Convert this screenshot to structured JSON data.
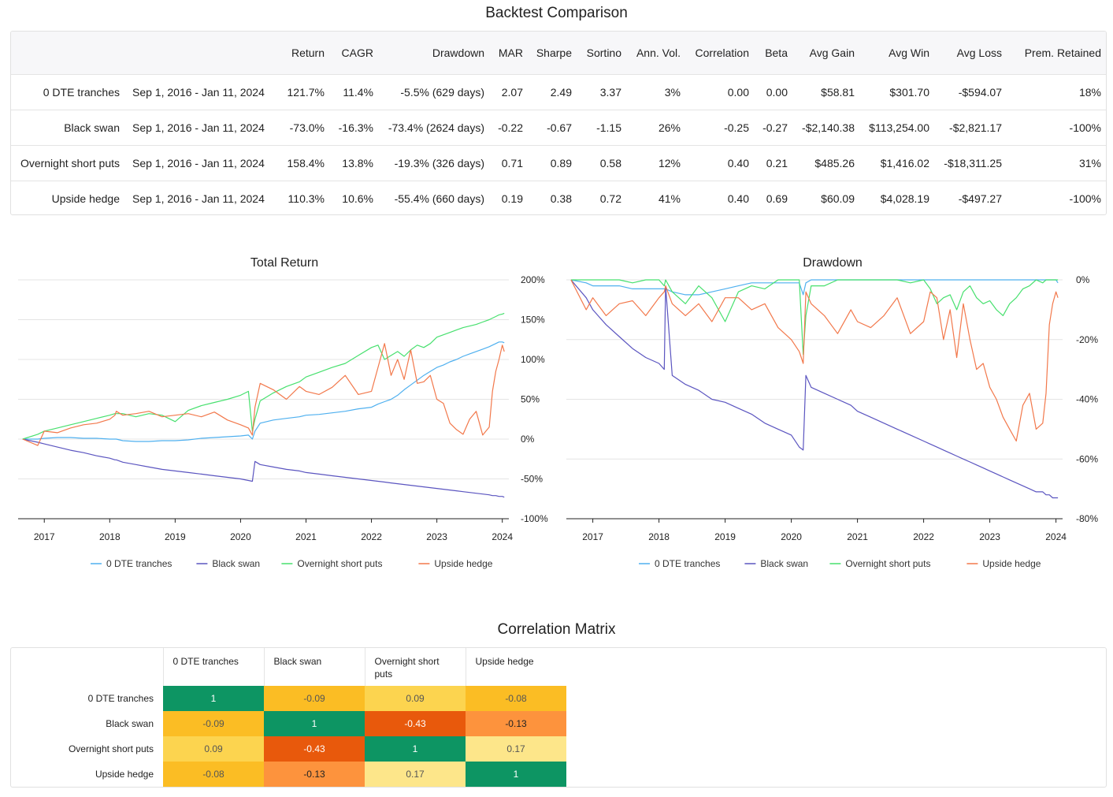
{
  "backtest": {
    "title": "Backtest Comparison",
    "columns": [
      "",
      "",
      "Return",
      "CAGR",
      "Drawdown",
      "MAR",
      "Sharpe",
      "Sortino",
      "Ann. Vol.",
      "Correlation",
      "Beta",
      "Avg Gain",
      "Avg Win",
      "Avg Loss",
      "Prem. Retained"
    ],
    "rows": [
      [
        "0 DTE tranches",
        "Sep 1, 2016 - Jan 11, 2024",
        "121.7%",
        "11.4%",
        "-5.5% (629 days)",
        "2.07",
        "2.49",
        "3.37",
        "3%",
        "0.00",
        "0.00",
        "$58.81",
        "$301.70",
        "-$594.07",
        "18%"
      ],
      [
        "Black swan",
        "Sep 1, 2016 - Jan 11, 2024",
        "-73.0%",
        "-16.3%",
        "-73.4% (2624 days)",
        "-0.22",
        "-0.67",
        "-1.15",
        "26%",
        "-0.25",
        "-0.27",
        "-$2,140.38",
        "$113,254.00",
        "-$2,821.17",
        "-100%"
      ],
      [
        "Overnight short puts",
        "Sep 1, 2016 - Jan 11, 2024",
        "158.4%",
        "13.8%",
        "-19.3% (326 days)",
        "0.71",
        "0.89",
        "0.58",
        "12%",
        "0.40",
        "0.21",
        "$485.26",
        "$1,416.02",
        "-$18,311.25",
        "31%"
      ],
      [
        "Upside hedge",
        "Sep 1, 2016 - Jan 11, 2024",
        "110.3%",
        "10.6%",
        "-55.4% (660 days)",
        "0.19",
        "0.38",
        "0.72",
        "41%",
        "0.40",
        "0.69",
        "$60.09",
        "$4,028.19",
        "-$497.27",
        "-100%"
      ]
    ]
  },
  "colors": {
    "0 DTE tranches": "#4fb0ef",
    "Black swan": "#5b55c0",
    "Overnight short puts": "#47e06e",
    "Upside hedge": "#f2784b"
  },
  "chart_data": [
    {
      "type": "line",
      "title": "Total Return",
      "y_unit": "%",
      "ylim": [
        -100,
        200
      ],
      "yticks": [
        "200%",
        "150%",
        "100%",
        "50%",
        "0%",
        "-50%",
        "-100%"
      ],
      "xlim": [
        2016.6,
        2024.1
      ],
      "xticks": [
        "2017",
        "2018",
        "2019",
        "2020",
        "2021",
        "2022",
        "2023",
        "2024"
      ],
      "x": [
        2016.67,
        2016.9,
        2017.0,
        2017.2,
        2017.4,
        2017.6,
        2017.8,
        2018.0,
        2018.08,
        2018.1,
        2018.2,
        2018.4,
        2018.6,
        2018.8,
        2019.0,
        2019.2,
        2019.4,
        2019.6,
        2019.8,
        2020.0,
        2020.12,
        2020.18,
        2020.22,
        2020.3,
        2020.5,
        2020.7,
        2020.9,
        2021.0,
        2021.2,
        2021.4,
        2021.6,
        2021.8,
        2022.0,
        2022.1,
        2022.2,
        2022.3,
        2022.4,
        2022.5,
        2022.6,
        2022.7,
        2022.8,
        2022.9,
        2023.0,
        2023.1,
        2023.2,
        2023.3,
        2023.4,
        2023.5,
        2023.6,
        2023.7,
        2023.8,
        2023.85,
        2023.9,
        2023.95,
        2024.0,
        2024.03
      ],
      "series": [
        {
          "name": "0 DTE tranches",
          "values": [
            0,
            0,
            1,
            2,
            2,
            1,
            1,
            0,
            0,
            0,
            -2,
            -3,
            -3,
            -2,
            -2,
            -1,
            1,
            2,
            3,
            4,
            5,
            0,
            10,
            20,
            24,
            26,
            28,
            30,
            31,
            33,
            35,
            38,
            40,
            44,
            47,
            50,
            55,
            62,
            68,
            74,
            80,
            85,
            90,
            93,
            97,
            100,
            104,
            107,
            110,
            113,
            116,
            118,
            120,
            122,
            122,
            121
          ]
        },
        {
          "name": "Black swan",
          "values": [
            0,
            -4,
            -6,
            -10,
            -14,
            -17,
            -21,
            -24,
            -26,
            -26,
            -29,
            -32,
            -35,
            -38,
            -40,
            -42,
            -44,
            -46,
            -48,
            -50,
            -52,
            -53,
            -28,
            -32,
            -35,
            -38,
            -40,
            -42,
            -44,
            -46,
            -48,
            -50,
            -52,
            -53,
            -54,
            -55,
            -56,
            -57,
            -58,
            -59,
            -60,
            -61,
            -62,
            -63,
            -64,
            -65,
            -66,
            -67,
            -68,
            -69,
            -70,
            -71,
            -71,
            -72,
            -72,
            -73
          ]
        },
        {
          "name": "Overnight short puts",
          "values": [
            0,
            6,
            10,
            14,
            18,
            22,
            26,
            30,
            32,
            32,
            32,
            28,
            32,
            30,
            22,
            36,
            42,
            46,
            50,
            55,
            60,
            10,
            25,
            48,
            58,
            66,
            72,
            78,
            84,
            90,
            95,
            105,
            115,
            118,
            100,
            105,
            110,
            104,
            112,
            118,
            115,
            120,
            128,
            131,
            134,
            137,
            140,
            142,
            144,
            147,
            150,
            152,
            154,
            156,
            157,
            158
          ]
        },
        {
          "name": "Upside hedge",
          "values": [
            0,
            -8,
            10,
            8,
            14,
            18,
            20,
            25,
            30,
            35,
            30,
            32,
            35,
            28,
            30,
            32,
            28,
            34,
            24,
            18,
            14,
            5,
            40,
            70,
            62,
            50,
            66,
            60,
            56,
            65,
            80,
            56,
            60,
            90,
            120,
            80,
            100,
            75,
            112,
            70,
            72,
            80,
            50,
            45,
            20,
            12,
            6,
            25,
            35,
            5,
            15,
            60,
            85,
            100,
            118,
            110
          ]
        }
      ]
    },
    {
      "type": "line",
      "title": "Drawdown",
      "y_unit": "%",
      "ylim": [
        -80,
        0
      ],
      "yticks": [
        "0%",
        "-20%",
        "-40%",
        "-60%",
        "-80%"
      ],
      "xlim": [
        2016.6,
        2024.1
      ],
      "xticks": [
        "2017",
        "2018",
        "2019",
        "2020",
        "2021",
        "2022",
        "2023",
        "2024"
      ],
      "x": [
        2016.67,
        2016.9,
        2017.0,
        2017.2,
        2017.4,
        2017.6,
        2017.8,
        2018.0,
        2018.08,
        2018.1,
        2018.2,
        2018.4,
        2018.6,
        2018.8,
        2019.0,
        2019.2,
        2019.4,
        2019.6,
        2019.8,
        2020.0,
        2020.12,
        2020.18,
        2020.22,
        2020.3,
        2020.5,
        2020.7,
        2020.9,
        2021.0,
        2021.2,
        2021.4,
        2021.6,
        2021.8,
        2022.0,
        2022.1,
        2022.2,
        2022.3,
        2022.4,
        2022.5,
        2022.6,
        2022.7,
        2022.8,
        2022.9,
        2023.0,
        2023.1,
        2023.2,
        2023.3,
        2023.4,
        2023.5,
        2023.6,
        2023.7,
        2023.8,
        2023.85,
        2023.9,
        2023.95,
        2024.0,
        2024.03
      ],
      "series": [
        {
          "name": "0 DTE tranches",
          "values": [
            0,
            -1,
            -2,
            -2,
            -2,
            -3,
            -3,
            -3,
            -3,
            -3,
            -4,
            -5,
            -5,
            -4,
            -3,
            -2,
            -1,
            -1,
            -1,
            -1,
            -1,
            -5,
            -1,
            0,
            0,
            0,
            0,
            0,
            0,
            0,
            0,
            0,
            0,
            0,
            0,
            0,
            0,
            0,
            0,
            0,
            0,
            0,
            0,
            0,
            0,
            0,
            0,
            0,
            0,
            0,
            0,
            0,
            0,
            0,
            0,
            -1
          ]
        },
        {
          "name": "Black swan",
          "values": [
            0,
            -6,
            -10,
            -15,
            -19,
            -23,
            -26,
            -28,
            -30,
            -2,
            -32,
            -35,
            -37,
            -40,
            -41,
            -43,
            -45,
            -48,
            -50,
            -52,
            -56,
            -57,
            -32,
            -36,
            -38,
            -40,
            -42,
            -44,
            -46,
            -48,
            -50,
            -52,
            -54,
            -55,
            -56,
            -57,
            -58,
            -59,
            -60,
            -61,
            -62,
            -63,
            -64,
            -65,
            -66,
            -67,
            -68,
            -69,
            -70,
            -71,
            -71,
            -72,
            -72,
            -73,
            -73,
            -73
          ]
        },
        {
          "name": "Overnight short puts",
          "values": [
            0,
            0,
            0,
            0,
            0,
            -1,
            0,
            0,
            -2,
            0,
            -4,
            -8,
            -2,
            -6,
            -14,
            -4,
            -2,
            -3,
            0,
            0,
            0,
            -25,
            -12,
            -2,
            -2,
            0,
            0,
            0,
            0,
            0,
            0,
            -1,
            0,
            -3,
            -8,
            -6,
            -5,
            -10,
            -4,
            -2,
            -6,
            -8,
            -7,
            -10,
            -12,
            -8,
            -6,
            -3,
            -2,
            0,
            -1,
            0,
            0,
            0,
            0,
            0
          ]
        },
        {
          "name": "Upside hedge",
          "values": [
            0,
            -10,
            -6,
            -12,
            -8,
            -7,
            -12,
            -6,
            -4,
            -2,
            -8,
            -12,
            -8,
            -14,
            -6,
            -6,
            -10,
            -8,
            -16,
            -20,
            -24,
            -28,
            -4,
            -8,
            -12,
            -18,
            -10,
            -14,
            -16,
            -12,
            -6,
            -18,
            -14,
            -4,
            -6,
            -20,
            -10,
            -26,
            -8,
            -20,
            -30,
            -28,
            -36,
            -40,
            -46,
            -50,
            -54,
            -42,
            -38,
            -50,
            -48,
            -38,
            -15,
            -8,
            -4,
            -6
          ]
        }
      ]
    }
  ],
  "correlation": {
    "title": "Correlation Matrix",
    "labels": [
      "0 DTE tranches",
      "Black swan",
      "Overnight short puts",
      "Upside hedge"
    ],
    "values": [
      [
        "1",
        "-0.09",
        "0.09",
        "-0.08"
      ],
      [
        "-0.09",
        "1",
        "-0.43",
        "-0.13"
      ],
      [
        "0.09",
        "-0.43",
        "1",
        "0.17"
      ],
      [
        "-0.08",
        "-0.13",
        "0.17",
        "1"
      ]
    ],
    "cell_colors": [
      [
        "#0d9563",
        "#fbbd24",
        "#fcd44f",
        "#fbbd24"
      ],
      [
        "#fbbd24",
        "#0d9563",
        "#e8590c",
        "#fd933d"
      ],
      [
        "#fcd44f",
        "#e8590c",
        "#0d9563",
        "#fde68a"
      ],
      [
        "#fbbd24",
        "#fd933d",
        "#fde68a",
        "#0d9563"
      ]
    ],
    "text_colors": [
      [
        "#ffffff",
        "#555555",
        "#555555",
        "#555555"
      ],
      [
        "#555555",
        "#ffffff",
        "#ffffff",
        "#222222"
      ],
      [
        "#555555",
        "#ffffff",
        "#ffffff",
        "#555555"
      ],
      [
        "#555555",
        "#222222",
        "#555555",
        "#ffffff"
      ]
    ]
  }
}
